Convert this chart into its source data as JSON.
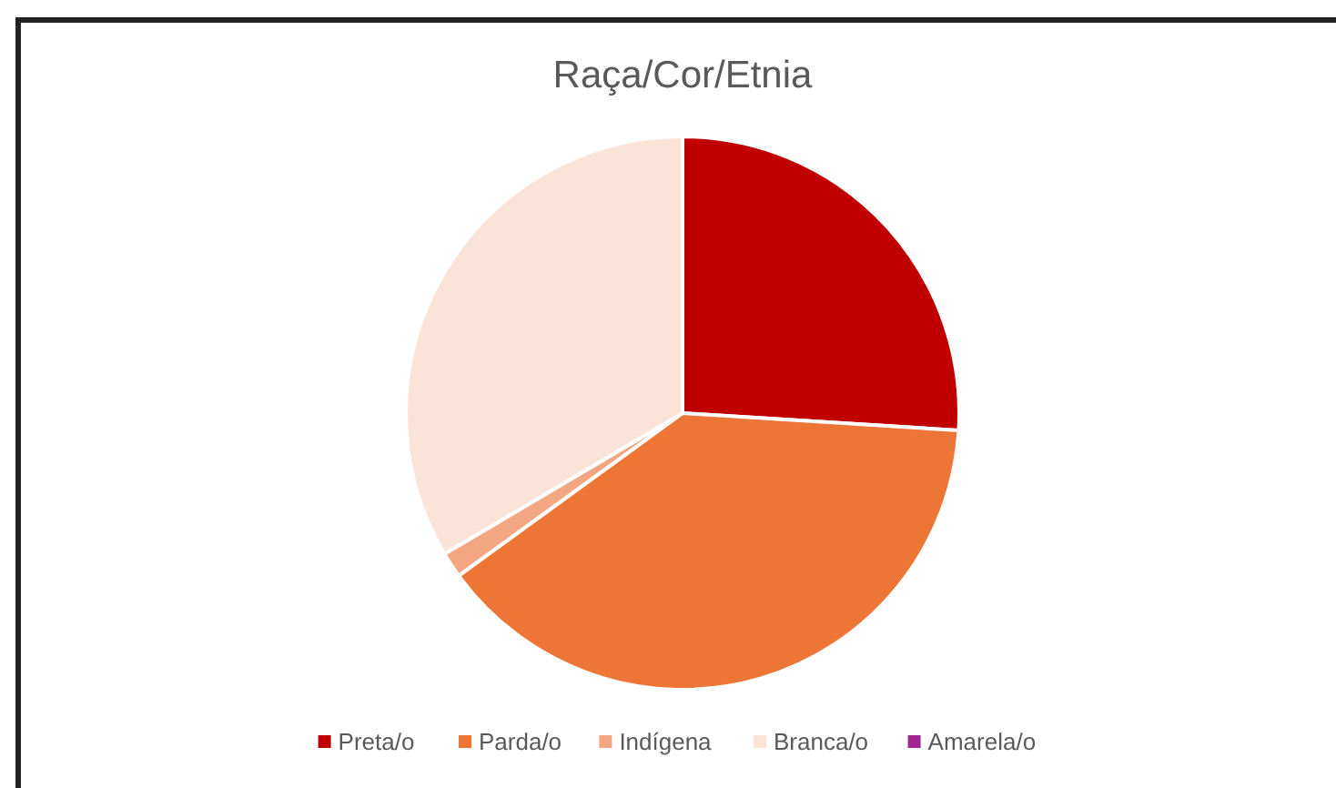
{
  "chart_data": {
    "type": "pie",
    "title": "Raça/Cor/Etnia",
    "categories": [
      "Preta/o",
      "Parda/o",
      "Indígena",
      "Branca/o",
      "Amarela/o"
    ],
    "values": [
      26,
      39,
      1.5,
      33.5,
      0
    ],
    "colors": [
      "#c00000",
      "#ed7535",
      "#f4a582",
      "#fbe3d8",
      "#a0258f"
    ],
    "legend": "bottom"
  }
}
